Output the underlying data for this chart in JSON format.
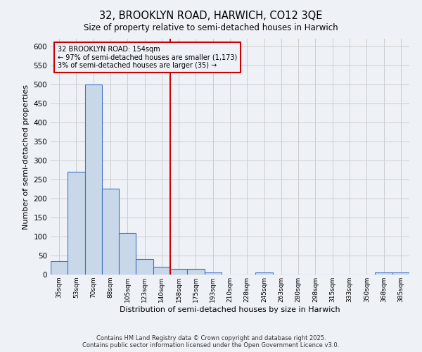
{
  "title_line1": "32, BROOKLYN ROAD, HARWICH, CO12 3QE",
  "title_line2": "Size of property relative to semi-detached houses in Harwich",
  "xlabel": "Distribution of semi-detached houses by size in Harwich",
  "ylabel": "Number of semi-detached properties",
  "categories": [
    "35sqm",
    "53sqm",
    "70sqm",
    "88sqm",
    "105sqm",
    "123sqm",
    "140sqm",
    "158sqm",
    "175sqm",
    "193sqm",
    "210sqm",
    "228sqm",
    "245sqm",
    "263sqm",
    "280sqm",
    "298sqm",
    "315sqm",
    "333sqm",
    "350sqm",
    "368sqm",
    "385sqm"
  ],
  "values": [
    35,
    270,
    500,
    225,
    110,
    40,
    20,
    15,
    15,
    5,
    0,
    0,
    5,
    0,
    0,
    0,
    0,
    0,
    0,
    5,
    5
  ],
  "bar_color": "#c8d8e8",
  "bar_edge_color": "#4472c4",
  "grid_color": "#cccccc",
  "background_color": "#eef2f7",
  "annotation_box_text_line1": "32 BROOKLYN ROAD: 154sqm",
  "annotation_box_text_line2": "← 97% of semi-detached houses are smaller (1,173)",
  "annotation_box_text_line3": "3% of semi-detached houses are larger (35) →",
  "vline_index": 7,
  "vline_color": "#cc0000",
  "annotation_box_color": "#cc0000",
  "ylim": [
    0,
    620
  ],
  "yticks": [
    0,
    50,
    100,
    150,
    200,
    250,
    300,
    350,
    400,
    450,
    500,
    550,
    600
  ],
  "footer_line1": "Contains HM Land Registry data © Crown copyright and database right 2025.",
  "footer_line2": "Contains public sector information licensed under the Open Government Licence v3.0."
}
